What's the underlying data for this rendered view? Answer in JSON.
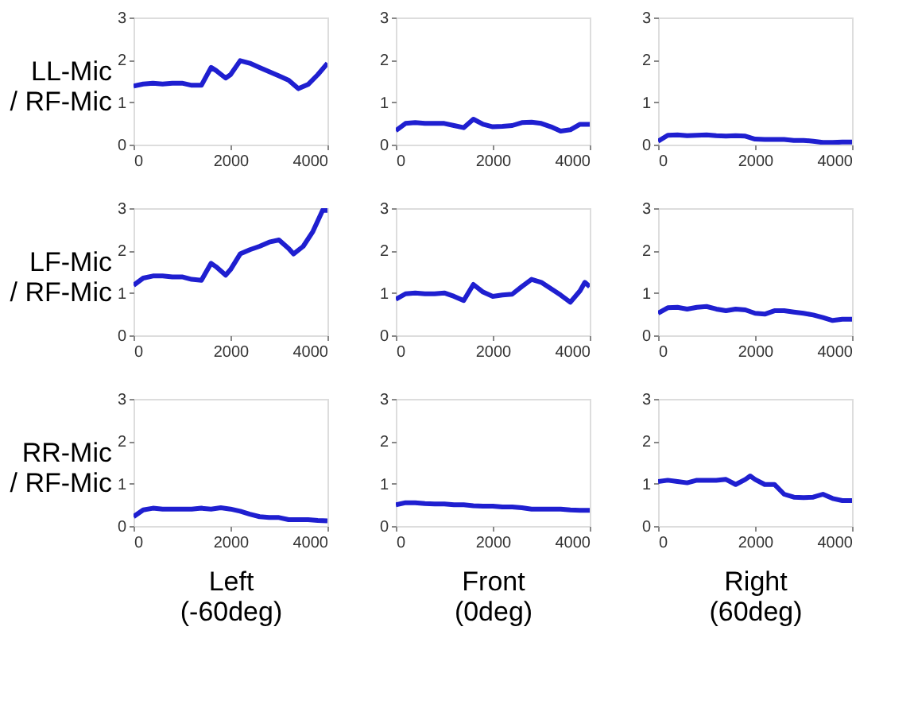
{
  "chart_data": [
    {
      "type": "line",
      "ylabel": "LL-Mic\n/ RF-Mic",
      "x": [
        0,
        200,
        400,
        600,
        800,
        1000,
        1200,
        1400,
        1600,
        1700,
        1900,
        2000,
        2200,
        2400,
        2600,
        2800,
        3000,
        3200,
        3400,
        3600,
        3800,
        4000
      ],
      "series": [
        {
          "color": "#1f1fd0",
          "values": [
            1.38,
            1.43,
            1.45,
            1.43,
            1.45,
            1.45,
            1.4,
            1.4,
            1.82,
            1.75,
            1.57,
            1.65,
            1.98,
            1.92,
            1.82,
            1.72,
            1.62,
            1.52,
            1.32,
            1.42,
            1.65,
            1.92
          ]
        }
      ],
      "xlim": [
        0,
        4000
      ],
      "ylim": [
        0,
        3
      ],
      "xticks": [
        0,
        2000,
        4000
      ],
      "yticks": [
        0,
        1,
        2,
        3
      ],
      "grid": false,
      "line_style": "solid"
    },
    {
      "type": "line",
      "x": [
        0,
        200,
        400,
        600,
        800,
        1000,
        1200,
        1400,
        1600,
        1800,
        2000,
        2200,
        2400,
        2600,
        2800,
        3000,
        3200,
        3400,
        3600,
        3800,
        4000
      ],
      "series": [
        {
          "color": "#1f1fd0",
          "values": [
            0.33,
            0.5,
            0.52,
            0.5,
            0.5,
            0.5,
            0.45,
            0.4,
            0.6,
            0.48,
            0.42,
            0.43,
            0.45,
            0.52,
            0.53,
            0.5,
            0.42,
            0.32,
            0.35,
            0.48,
            0.48
          ]
        }
      ],
      "xlim": [
        0,
        4000
      ],
      "ylim": [
        0,
        3
      ],
      "xticks": [
        0,
        2000,
        4000
      ],
      "yticks": [
        0,
        1,
        2,
        3
      ],
      "grid": false,
      "line_style": "solid"
    },
    {
      "type": "line",
      "x": [
        0,
        200,
        400,
        600,
        800,
        1000,
        1200,
        1400,
        1600,
        1800,
        2000,
        2200,
        2400,
        2600,
        2800,
        3000,
        3200,
        3400,
        3600,
        3800,
        4000
      ],
      "series": [
        {
          "color": "#1f1fd0",
          "values": [
            0.08,
            0.22,
            0.23,
            0.21,
            0.22,
            0.23,
            0.21,
            0.2,
            0.21,
            0.2,
            0.13,
            0.12,
            0.12,
            0.12,
            0.1,
            0.1,
            0.08,
            0.05,
            0.05,
            0.06,
            0.06
          ]
        }
      ],
      "xlim": [
        0,
        4000
      ],
      "ylim": [
        0,
        3
      ],
      "xticks": [
        0,
        2000,
        4000
      ],
      "yticks": [
        0,
        1,
        2,
        3
      ],
      "grid": false,
      "line_style": "solid"
    },
    {
      "type": "line",
      "ylabel": "LF-Mic\n/ RF-Mic",
      "x": [
        0,
        200,
        400,
        600,
        800,
        1000,
        1200,
        1400,
        1600,
        1700,
        1900,
        2000,
        2200,
        2400,
        2600,
        2800,
        3000,
        3200,
        3300,
        3500,
        3700,
        3900,
        4000
      ],
      "series": [
        {
          "color": "#1f1fd0",
          "values": [
            1.18,
            1.35,
            1.4,
            1.4,
            1.38,
            1.38,
            1.32,
            1.3,
            1.7,
            1.62,
            1.42,
            1.55,
            1.92,
            2.02,
            2.1,
            2.2,
            2.25,
            2.05,
            1.92,
            2.1,
            2.45,
            2.95,
            2.95
          ]
        }
      ],
      "xlim": [
        0,
        4000
      ],
      "ylim": [
        0,
        3
      ],
      "xticks": [
        0,
        2000,
        4000
      ],
      "yticks": [
        0,
        1,
        2,
        3
      ],
      "grid": false,
      "line_style": "solid"
    },
    {
      "type": "line",
      "x": [
        0,
        200,
        400,
        600,
        800,
        1000,
        1200,
        1400,
        1600,
        1800,
        2000,
        2200,
        2400,
        2600,
        2800,
        3000,
        3200,
        3400,
        3600,
        3800,
        3900,
        4000
      ],
      "series": [
        {
          "color": "#1f1fd0",
          "values": [
            0.85,
            0.98,
            1.0,
            0.98,
            0.98,
            1.0,
            0.92,
            0.82,
            1.2,
            1.02,
            0.92,
            0.95,
            0.97,
            1.15,
            1.32,
            1.25,
            1.1,
            0.95,
            0.78,
            1.05,
            1.25,
            1.15
          ]
        }
      ],
      "xlim": [
        0,
        4000
      ],
      "ylim": [
        0,
        3
      ],
      "xticks": [
        0,
        2000,
        4000
      ],
      "yticks": [
        0,
        1,
        2,
        3
      ],
      "grid": false,
      "line_style": "solid"
    },
    {
      "type": "line",
      "x": [
        0,
        200,
        400,
        600,
        800,
        1000,
        1200,
        1400,
        1600,
        1800,
        2000,
        2200,
        2400,
        2600,
        2800,
        3000,
        3200,
        3400,
        3600,
        3800,
        4000
      ],
      "series": [
        {
          "color": "#1f1fd0",
          "values": [
            0.52,
            0.65,
            0.66,
            0.62,
            0.66,
            0.68,
            0.62,
            0.58,
            0.62,
            0.6,
            0.52,
            0.5,
            0.58,
            0.58,
            0.55,
            0.52,
            0.48,
            0.42,
            0.35,
            0.38,
            0.38
          ]
        }
      ],
      "xlim": [
        0,
        4000
      ],
      "ylim": [
        0,
        3
      ],
      "xticks": [
        0,
        2000,
        4000
      ],
      "yticks": [
        0,
        1,
        2,
        3
      ],
      "grid": false,
      "line_style": "solid"
    },
    {
      "type": "line",
      "ylabel": "RR-Mic\n/ RF-Mic",
      "xlabel": "Left\n(-60deg)",
      "x": [
        0,
        200,
        400,
        600,
        800,
        1000,
        1200,
        1400,
        1600,
        1800,
        2000,
        2200,
        2400,
        2600,
        2800,
        3000,
        3200,
        3400,
        3600,
        3800,
        4000
      ],
      "series": [
        {
          "color": "#1f1fd0",
          "values": [
            0.22,
            0.38,
            0.42,
            0.4,
            0.4,
            0.4,
            0.4,
            0.42,
            0.4,
            0.43,
            0.4,
            0.35,
            0.28,
            0.22,
            0.2,
            0.2,
            0.15,
            0.15,
            0.15,
            0.13,
            0.12
          ]
        }
      ],
      "xlim": [
        0,
        4000
      ],
      "ylim": [
        0,
        3
      ],
      "xticks": [
        0,
        2000,
        4000
      ],
      "yticks": [
        0,
        1,
        2,
        3
      ],
      "grid": false,
      "line_style": "solid"
    },
    {
      "type": "line",
      "xlabel": "Front\n(0deg)",
      "x": [
        0,
        200,
        400,
        600,
        800,
        1000,
        1200,
        1400,
        1600,
        1800,
        2000,
        2200,
        2400,
        2600,
        2800,
        3000,
        3200,
        3400,
        3600,
        3800,
        4000
      ],
      "series": [
        {
          "color": "#1f1fd0",
          "values": [
            0.5,
            0.55,
            0.55,
            0.53,
            0.52,
            0.52,
            0.5,
            0.5,
            0.48,
            0.47,
            0.47,
            0.45,
            0.45,
            0.43,
            0.4,
            0.4,
            0.4,
            0.4,
            0.38,
            0.37,
            0.37
          ]
        }
      ],
      "xlim": [
        0,
        4000
      ],
      "ylim": [
        0,
        3
      ],
      "xticks": [
        0,
        2000,
        4000
      ],
      "yticks": [
        0,
        1,
        2,
        3
      ],
      "grid": false,
      "line_style": "solid"
    },
    {
      "type": "line",
      "xlabel": "Right\n(60deg)",
      "x": [
        0,
        200,
        400,
        600,
        800,
        1000,
        1200,
        1400,
        1600,
        1800,
        1900,
        2000,
        2200,
        2400,
        2600,
        2800,
        3000,
        3200,
        3400,
        3600,
        3800,
        4000
      ],
      "series": [
        {
          "color": "#1f1fd0",
          "values": [
            1.05,
            1.08,
            1.05,
            1.02,
            1.08,
            1.08,
            1.08,
            1.1,
            0.98,
            1.1,
            1.18,
            1.1,
            0.98,
            0.98,
            0.75,
            0.68,
            0.67,
            0.68,
            0.75,
            0.65,
            0.6,
            0.6
          ]
        }
      ],
      "xlim": [
        0,
        4000
      ],
      "ylim": [
        0,
        3
      ],
      "xticks": [
        0,
        2000,
        4000
      ],
      "yticks": [
        0,
        1,
        2,
        3
      ],
      "grid": false,
      "line_style": "solid"
    }
  ]
}
